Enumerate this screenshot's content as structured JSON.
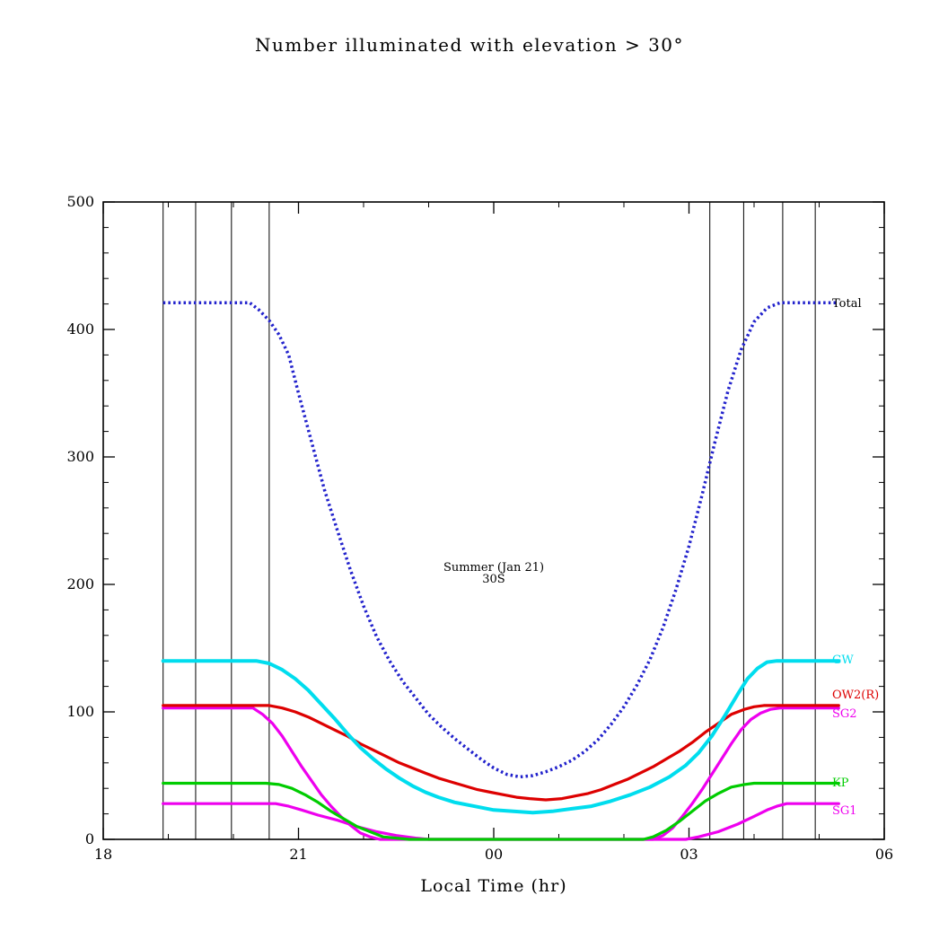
{
  "chart_data": {
    "type": "line",
    "title": "Number illuminated with elevation > 30°",
    "xlabel": "Local Time (hr)",
    "ylabel": "",
    "annotation_line1": "Summer (Jan 21)",
    "annotation_line2": "30S",
    "x_axis": {
      "min": 18,
      "max": 30,
      "tick_values": [
        18,
        21,
        24,
        27,
        30
      ],
      "tick_labels": [
        "18",
        "21",
        "00",
        "03",
        "06"
      ],
      "minor_tick_interval": 1
    },
    "y_axis": {
      "min": 0,
      "max": 500,
      "tick_values": [
        0,
        100,
        200,
        300,
        400,
        500
      ],
      "tick_labels": [
        "0",
        "100",
        "200",
        "300",
        "400",
        "500"
      ],
      "minor_tick_interval": 20
    },
    "grid": false,
    "legend_position": "right-inline",
    "vertical_line_times": [
      18.92,
      19.42,
      19.97,
      20.55,
      27.32,
      27.84,
      28.44,
      28.94
    ],
    "colors": {
      "total": "#2222CC",
      "gw": "#00DDEE",
      "ow2r": "#DD0000",
      "sg2": "#EE00EE",
      "kp": "#00CC00",
      "sg1": "#EE00EE",
      "axis": "#000000",
      "background": "#FFFFFF"
    },
    "series": [
      {
        "name": "SG1",
        "color": "#EE00EE",
        "style": "solid",
        "width": 3.2,
        "points": [
          [
            18.92,
            28
          ],
          [
            19.6,
            28
          ],
          [
            20.65,
            28
          ],
          [
            20.85,
            26
          ],
          [
            21.05,
            23
          ],
          [
            21.3,
            19
          ],
          [
            21.6,
            15
          ],
          [
            21.9,
            10
          ],
          [
            22.2,
            6
          ],
          [
            22.5,
            3
          ],
          [
            22.8,
            1
          ],
          [
            23.0,
            0
          ],
          [
            24.5,
            0
          ],
          [
            26.0,
            0
          ],
          [
            26.95,
            0
          ],
          [
            27.15,
            2
          ],
          [
            27.45,
            6
          ],
          [
            27.75,
            12
          ],
          [
            28.0,
            18
          ],
          [
            28.2,
            23
          ],
          [
            28.35,
            26
          ],
          [
            28.5,
            28
          ],
          [
            29.3,
            28
          ]
        ]
      },
      {
        "name": "SG2",
        "color": "#EE00EE",
        "style": "solid",
        "width": 3.2,
        "points": [
          [
            18.92,
            103
          ],
          [
            19.6,
            103
          ],
          [
            20.3,
            103
          ],
          [
            20.45,
            98
          ],
          [
            20.6,
            91
          ],
          [
            20.75,
            81
          ],
          [
            20.9,
            69
          ],
          [
            21.05,
            57
          ],
          [
            21.2,
            46
          ],
          [
            21.35,
            35
          ],
          [
            21.5,
            26
          ],
          [
            21.65,
            18
          ],
          [
            21.8,
            11
          ],
          [
            21.95,
            5
          ],
          [
            22.1,
            2
          ],
          [
            22.25,
            0
          ],
          [
            23.5,
            0
          ],
          [
            25.0,
            0
          ],
          [
            26.45,
            0
          ],
          [
            26.6,
            3
          ],
          [
            26.75,
            9
          ],
          [
            26.9,
            18
          ],
          [
            27.05,
            28
          ],
          [
            27.2,
            39
          ],
          [
            27.35,
            51
          ],
          [
            27.5,
            63
          ],
          [
            27.65,
            75
          ],
          [
            27.8,
            86
          ],
          [
            27.95,
            94
          ],
          [
            28.1,
            99
          ],
          [
            28.25,
            102
          ],
          [
            28.4,
            103
          ],
          [
            29.3,
            103
          ]
        ]
      },
      {
        "name": "KP",
        "color": "#00CC00",
        "style": "solid",
        "width": 3.2,
        "points": [
          [
            18.92,
            44
          ],
          [
            19.6,
            44
          ],
          [
            20.5,
            44
          ],
          [
            20.7,
            43
          ],
          [
            20.9,
            40
          ],
          [
            21.1,
            35
          ],
          [
            21.3,
            29
          ],
          [
            21.5,
            22
          ],
          [
            21.7,
            16
          ],
          [
            21.9,
            10
          ],
          [
            22.1,
            6
          ],
          [
            22.3,
            2
          ],
          [
            22.5,
            1
          ],
          [
            22.7,
            0
          ],
          [
            24.0,
            0
          ],
          [
            25.5,
            0
          ],
          [
            26.3,
            0
          ],
          [
            26.45,
            2
          ],
          [
            26.65,
            7
          ],
          [
            26.85,
            14
          ],
          [
            27.05,
            22
          ],
          [
            27.25,
            30
          ],
          [
            27.45,
            36
          ],
          [
            27.65,
            41
          ],
          [
            27.85,
            43
          ],
          [
            28.0,
            44
          ],
          [
            29.3,
            44
          ]
        ]
      },
      {
        "name": "OW2(R)",
        "color": "#DD0000",
        "style": "solid",
        "width": 3.2,
        "points": [
          [
            18.92,
            105
          ],
          [
            19.6,
            105
          ],
          [
            20.55,
            105
          ],
          [
            20.75,
            103
          ],
          [
            20.95,
            100
          ],
          [
            21.15,
            96
          ],
          [
            21.35,
            91
          ],
          [
            21.55,
            86
          ],
          [
            21.75,
            81
          ],
          [
            21.95,
            75
          ],
          [
            22.15,
            70
          ],
          [
            22.35,
            65
          ],
          [
            22.55,
            60
          ],
          [
            22.75,
            56
          ],
          [
            22.95,
            52
          ],
          [
            23.15,
            48
          ],
          [
            23.35,
            45
          ],
          [
            23.55,
            42
          ],
          [
            23.75,
            39
          ],
          [
            23.95,
            37
          ],
          [
            24.15,
            35
          ],
          [
            24.35,
            33
          ],
          [
            24.55,
            32
          ],
          [
            24.8,
            31
          ],
          [
            25.05,
            32
          ],
          [
            25.25,
            34
          ],
          [
            25.45,
            36
          ],
          [
            25.65,
            39
          ],
          [
            25.85,
            43
          ],
          [
            26.05,
            47
          ],
          [
            26.25,
            52
          ],
          [
            26.45,
            57
          ],
          [
            26.65,
            63
          ],
          [
            26.85,
            69
          ],
          [
            27.05,
            76
          ],
          [
            27.25,
            84
          ],
          [
            27.45,
            91
          ],
          [
            27.65,
            98
          ],
          [
            27.85,
            102
          ],
          [
            28.0,
            104
          ],
          [
            28.15,
            105
          ],
          [
            29.3,
            105
          ]
        ]
      },
      {
        "name": "GW",
        "color": "#00DDEE",
        "style": "solid",
        "width": 4,
        "points": [
          [
            18.92,
            140
          ],
          [
            19.6,
            140
          ],
          [
            20.35,
            140
          ],
          [
            20.55,
            138
          ],
          [
            20.75,
            133
          ],
          [
            20.95,
            126
          ],
          [
            21.15,
            117
          ],
          [
            21.35,
            106
          ],
          [
            21.55,
            95
          ],
          [
            21.75,
            83
          ],
          [
            21.95,
            72
          ],
          [
            22.15,
            63
          ],
          [
            22.35,
            55
          ],
          [
            22.55,
            48
          ],
          [
            22.75,
            42
          ],
          [
            22.95,
            37
          ],
          [
            23.15,
            33
          ],
          [
            23.4,
            29
          ],
          [
            23.7,
            26
          ],
          [
            24.0,
            23
          ],
          [
            24.3,
            22
          ],
          [
            24.6,
            21
          ],
          [
            24.9,
            22
          ],
          [
            25.2,
            24
          ],
          [
            25.5,
            26
          ],
          [
            25.8,
            30
          ],
          [
            26.1,
            35
          ],
          [
            26.4,
            41
          ],
          [
            26.7,
            49
          ],
          [
            26.95,
            58
          ],
          [
            27.15,
            68
          ],
          [
            27.35,
            81
          ],
          [
            27.55,
            97
          ],
          [
            27.75,
            114
          ],
          [
            27.9,
            126
          ],
          [
            28.05,
            134
          ],
          [
            28.2,
            139
          ],
          [
            28.35,
            140
          ],
          [
            29.3,
            140
          ]
        ]
      },
      {
        "name": "Total",
        "color": "#2222CC",
        "style": "dotted",
        "width": 3.5,
        "points": [
          [
            18.92,
            421
          ],
          [
            19.6,
            421
          ],
          [
            20.25,
            421
          ],
          [
            20.4,
            415
          ],
          [
            20.55,
            407
          ],
          [
            20.7,
            396
          ],
          [
            20.85,
            380
          ],
          [
            21.0,
            350
          ],
          [
            21.2,
            312
          ],
          [
            21.4,
            274
          ],
          [
            21.6,
            242
          ],
          [
            21.8,
            211
          ],
          [
            22.0,
            183
          ],
          [
            22.2,
            159
          ],
          [
            22.4,
            140
          ],
          [
            22.6,
            124
          ],
          [
            22.8,
            111
          ],
          [
            23.0,
            98
          ],
          [
            23.2,
            88
          ],
          [
            23.4,
            79
          ],
          [
            23.6,
            71
          ],
          [
            23.8,
            63
          ],
          [
            24.0,
            56
          ],
          [
            24.2,
            51
          ],
          [
            24.4,
            49
          ],
          [
            24.6,
            50
          ],
          [
            24.8,
            53
          ],
          [
            25.0,
            57
          ],
          [
            25.2,
            62
          ],
          [
            25.4,
            69
          ],
          [
            25.6,
            78
          ],
          [
            25.8,
            90
          ],
          [
            26.0,
            104
          ],
          [
            26.2,
            121
          ],
          [
            26.4,
            141
          ],
          [
            26.6,
            166
          ],
          [
            26.8,
            196
          ],
          [
            27.0,
            230
          ],
          [
            27.2,
            270
          ],
          [
            27.4,
            312
          ],
          [
            27.6,
            352
          ],
          [
            27.8,
            384
          ],
          [
            28.0,
            406
          ],
          [
            28.2,
            417
          ],
          [
            28.4,
            421
          ],
          [
            29.0,
            421
          ],
          [
            29.3,
            421
          ]
        ]
      }
    ],
    "curve_labels": [
      {
        "text": "Total",
        "color": "#000000",
        "y": 420
      },
      {
        "text": "GW",
        "color": "#00DDEE",
        "y": 140
      },
      {
        "text": "OW2(R)",
        "color": "#DD0000",
        "y": 113
      },
      {
        "text": "SG2",
        "color": "#EE00EE",
        "y": 98
      },
      {
        "text": "KP",
        "color": "#00CC00",
        "y": 44
      },
      {
        "text": "SG1",
        "color": "#EE00EE",
        "y": 22
      }
    ]
  }
}
